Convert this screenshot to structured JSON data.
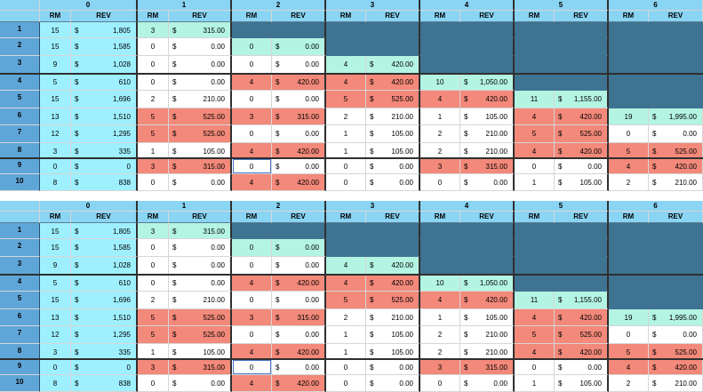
{
  "group_labels": [
    "0",
    "1",
    "2",
    "3",
    "4",
    "5",
    "6"
  ],
  "col_labels": {
    "rm": "RM",
    "rev": "REV"
  },
  "row_labels": [
    "1",
    "2",
    "3",
    "4",
    "5",
    "6",
    "7",
    "8",
    "9",
    "10"
  ],
  "rows": [
    [
      {
        "rm": "15",
        "rev": "1,805",
        "c": "cyan"
      },
      {
        "rm": "3",
        "rev": "315.00",
        "c": "mint"
      },
      null,
      null,
      null,
      null,
      null
    ],
    [
      {
        "rm": "15",
        "rev": "1,585",
        "c": "cyan"
      },
      {
        "rm": "0",
        "rev": "0.00",
        "c": "white"
      },
      {
        "rm": "0",
        "rev": "0.00",
        "c": "mint"
      },
      null,
      null,
      null,
      null
    ],
    [
      {
        "rm": "9",
        "rev": "1,028",
        "c": "cyan"
      },
      {
        "rm": "0",
        "rev": "0.00",
        "c": "white"
      },
      {
        "rm": "0",
        "rev": "0.00",
        "c": "white"
      },
      {
        "rm": "4",
        "rev": "420.00",
        "c": "mint"
      },
      null,
      null,
      null
    ],
    [
      {
        "rm": "5",
        "rev": "610",
        "c": "cyan"
      },
      {
        "rm": "0",
        "rev": "0.00",
        "c": "white"
      },
      {
        "rm": "4",
        "rev": "420.00",
        "c": "salmon"
      },
      {
        "rm": "4",
        "rev": "420.00",
        "c": "salmon"
      },
      {
        "rm": "10",
        "rev": "1,050.00",
        "c": "mint"
      },
      null,
      null
    ],
    [
      {
        "rm": "15",
        "rev": "1,696",
        "c": "cyan"
      },
      {
        "rm": "2",
        "rev": "210.00",
        "c": "white"
      },
      {
        "rm": "0",
        "rev": "0.00",
        "c": "white"
      },
      {
        "rm": "5",
        "rev": "525.00",
        "c": "salmon"
      },
      {
        "rm": "4",
        "rev": "420.00",
        "c": "salmon"
      },
      {
        "rm": "11",
        "rev": "1,155.00",
        "c": "mint"
      },
      null
    ],
    [
      {
        "rm": "13",
        "rev": "1,510",
        "c": "cyan"
      },
      {
        "rm": "5",
        "rev": "525.00",
        "c": "salmon"
      },
      {
        "rm": "3",
        "rev": "315.00",
        "c": "salmon"
      },
      {
        "rm": "2",
        "rev": "210.00",
        "c": "white"
      },
      {
        "rm": "1",
        "rev": "105.00",
        "c": "white"
      },
      {
        "rm": "4",
        "rev": "420.00",
        "c": "salmon"
      },
      {
        "rm": "19",
        "rev": "1,995.00",
        "c": "mint"
      }
    ],
    [
      {
        "rm": "12",
        "rev": "1,295",
        "c": "cyan"
      },
      {
        "rm": "5",
        "rev": "525.00",
        "c": "salmon"
      },
      {
        "rm": "0",
        "rev": "0.00",
        "c": "white"
      },
      {
        "rm": "1",
        "rev": "105.00",
        "c": "white"
      },
      {
        "rm": "2",
        "rev": "210.00",
        "c": "white"
      },
      {
        "rm": "5",
        "rev": "525.00",
        "c": "salmon"
      },
      {
        "rm": "0",
        "rev": "0.00",
        "c": "white"
      }
    ],
    [
      {
        "rm": "3",
        "rev": "335",
        "c": "cyan"
      },
      {
        "rm": "1",
        "rev": "105.00",
        "c": "white"
      },
      {
        "rm": "4",
        "rev": "420.00",
        "c": "salmon"
      },
      {
        "rm": "1",
        "rev": "105.00",
        "c": "white"
      },
      {
        "rm": "2",
        "rev": "210.00",
        "c": "white"
      },
      {
        "rm": "4",
        "rev": "420.00",
        "c": "salmon"
      },
      {
        "rm": "5",
        "rev": "525.00",
        "c": "salmon"
      }
    ],
    [
      {
        "rm": "0",
        "rev": "0",
        "c": "cyan"
      },
      {
        "rm": "3",
        "rev": "315.00",
        "c": "salmon"
      },
      {
        "rm": "0",
        "rev": "0.00",
        "c": "white",
        "sel": true
      },
      {
        "rm": "0",
        "rev": "0.00",
        "c": "white"
      },
      {
        "rm": "3",
        "rev": "315.00",
        "c": "salmon"
      },
      {
        "rm": "0",
        "rev": "0.00",
        "c": "white"
      },
      {
        "rm": "4",
        "rev": "420.00",
        "c": "salmon"
      }
    ],
    [
      {
        "rm": "8",
        "rev": "838",
        "c": "cyan"
      },
      {
        "rm": "0",
        "rev": "0.00",
        "c": "white"
      },
      {
        "rm": "4",
        "rev": "420.00",
        "c": "salmon"
      },
      {
        "rm": "0",
        "rev": "0.00",
        "c": "white"
      },
      {
        "rm": "0",
        "rev": "0.00",
        "c": "white"
      },
      {
        "rm": "1",
        "rev": "105.00",
        "c": "white"
      },
      {
        "rm": "2",
        "rev": "210.00",
        "c": "white"
      }
    ]
  ],
  "currency": "$",
  "colors": {
    "header": "#8ad4f4",
    "row_header": "#5fa6d8",
    "cyan": "#9ef0ff",
    "mint": "#b4f4e2",
    "salmon": "#f3897a",
    "teal": "#3f7392"
  }
}
